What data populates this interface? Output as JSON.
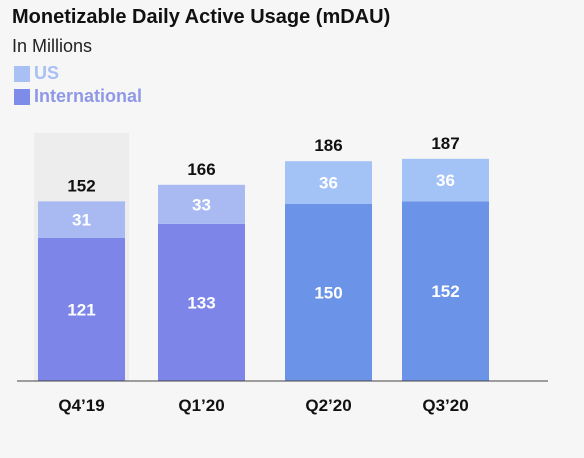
{
  "chart_data": {
    "type": "bar",
    "stacked": true,
    "title": "Monetizable Daily Active Usage (mDAU)",
    "subtitle": "In Millions",
    "categories": [
      "Q4’19",
      "Q1’20",
      "Q2’20",
      "Q3’20"
    ],
    "series": [
      {
        "name": "International",
        "values": [
          121,
          133,
          150,
          152
        ]
      },
      {
        "name": "US",
        "values": [
          31,
          33,
          36,
          36
        ]
      }
    ],
    "totals": [
      152,
      166,
      186,
      187
    ],
    "ylim": [
      0,
      195
    ],
    "grid": false,
    "legend_position": "top-left",
    "colors": {
      "international": [
        "#7d86e8",
        "#7d86e8",
        "#6b93e8",
        "#6b93e8"
      ],
      "us": [
        "#a9baf3",
        "#a9baf3",
        "#a3c2f5",
        "#a3c2f5"
      ],
      "legend_us": "#a9c0f5",
      "legend_international": "#7e8ce9",
      "legend_us_text": "#a9c0f5",
      "legend_international_text": "#8f98e6",
      "highlight_panel": "#ededed"
    }
  }
}
